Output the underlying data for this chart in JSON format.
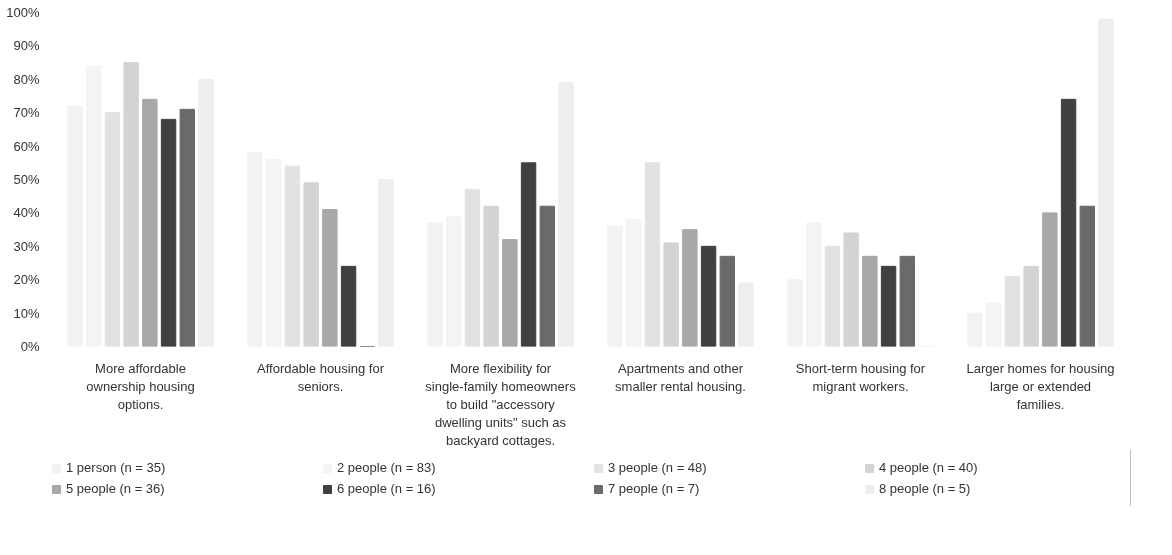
{
  "chart_data": {
    "type": "bar",
    "categories": [
      "More affordable ownership housing options.",
      "Affordable housing for seniors.",
      "More flexibility for single-family homeowners to build \"accessory dwelling units\" such as backyard cottages.",
      "Apartments and other smaller rental housing.",
      "Short-term housing for migrant workers.",
      "Larger homes for housing large or extended families."
    ],
    "series": [
      {
        "name": "1 person (n = 35)",
        "color": "#f2f2f2",
        "values": [
          72,
          58,
          37,
          36,
          20,
          10
        ]
      },
      {
        "name": "2 people (n = 83)",
        "color": "#f4f4f4",
        "values": [
          84,
          56,
          39,
          38,
          37,
          13
        ]
      },
      {
        "name": "3 people (n = 48)",
        "color": "#e2e2e2",
        "values": [
          70,
          54,
          47,
          55,
          30,
          21
        ]
      },
      {
        "name": "4 people (n = 40)",
        "color": "#d3d3d3",
        "values": [
          85,
          49,
          42,
          31,
          34,
          24
        ]
      },
      {
        "name": "5 people (n = 36)",
        "color": "#a8a8a8",
        "values": [
          74,
          41,
          32,
          35,
          27,
          40
        ]
      },
      {
        "name": "6 people (n = 16)",
        "color": "#404040",
        "values": [
          68,
          24,
          55,
          30,
          24,
          74
        ]
      },
      {
        "name": "7 people (n = 7)",
        "color": "#6a6a6a",
        "values": [
          71,
          0,
          42,
          27,
          27,
          42
        ]
      },
      {
        "name": "8 people (n = 5)",
        "color": "#eeeeee",
        "values": [
          80,
          50,
          79,
          19,
          0,
          98
        ]
      }
    ],
    "ylim": [
      0,
      100
    ],
    "yticks": [
      {
        "value": 0,
        "label": "0%"
      },
      {
        "value": 10,
        "label": "10%"
      },
      {
        "value": 20,
        "label": "20%"
      },
      {
        "value": 30,
        "label": "30%"
      },
      {
        "value": 40,
        "label": "40%"
      },
      {
        "value": 50,
        "label": "50%"
      },
      {
        "value": 60,
        "label": "60%"
      },
      {
        "value": 70,
        "label": "70%"
      },
      {
        "value": 80,
        "label": "80%"
      },
      {
        "value": 90,
        "label": "90%"
      },
      {
        "value": 100,
        "label": "100%"
      }
    ],
    "grid": false,
    "legend": "bottom"
  }
}
